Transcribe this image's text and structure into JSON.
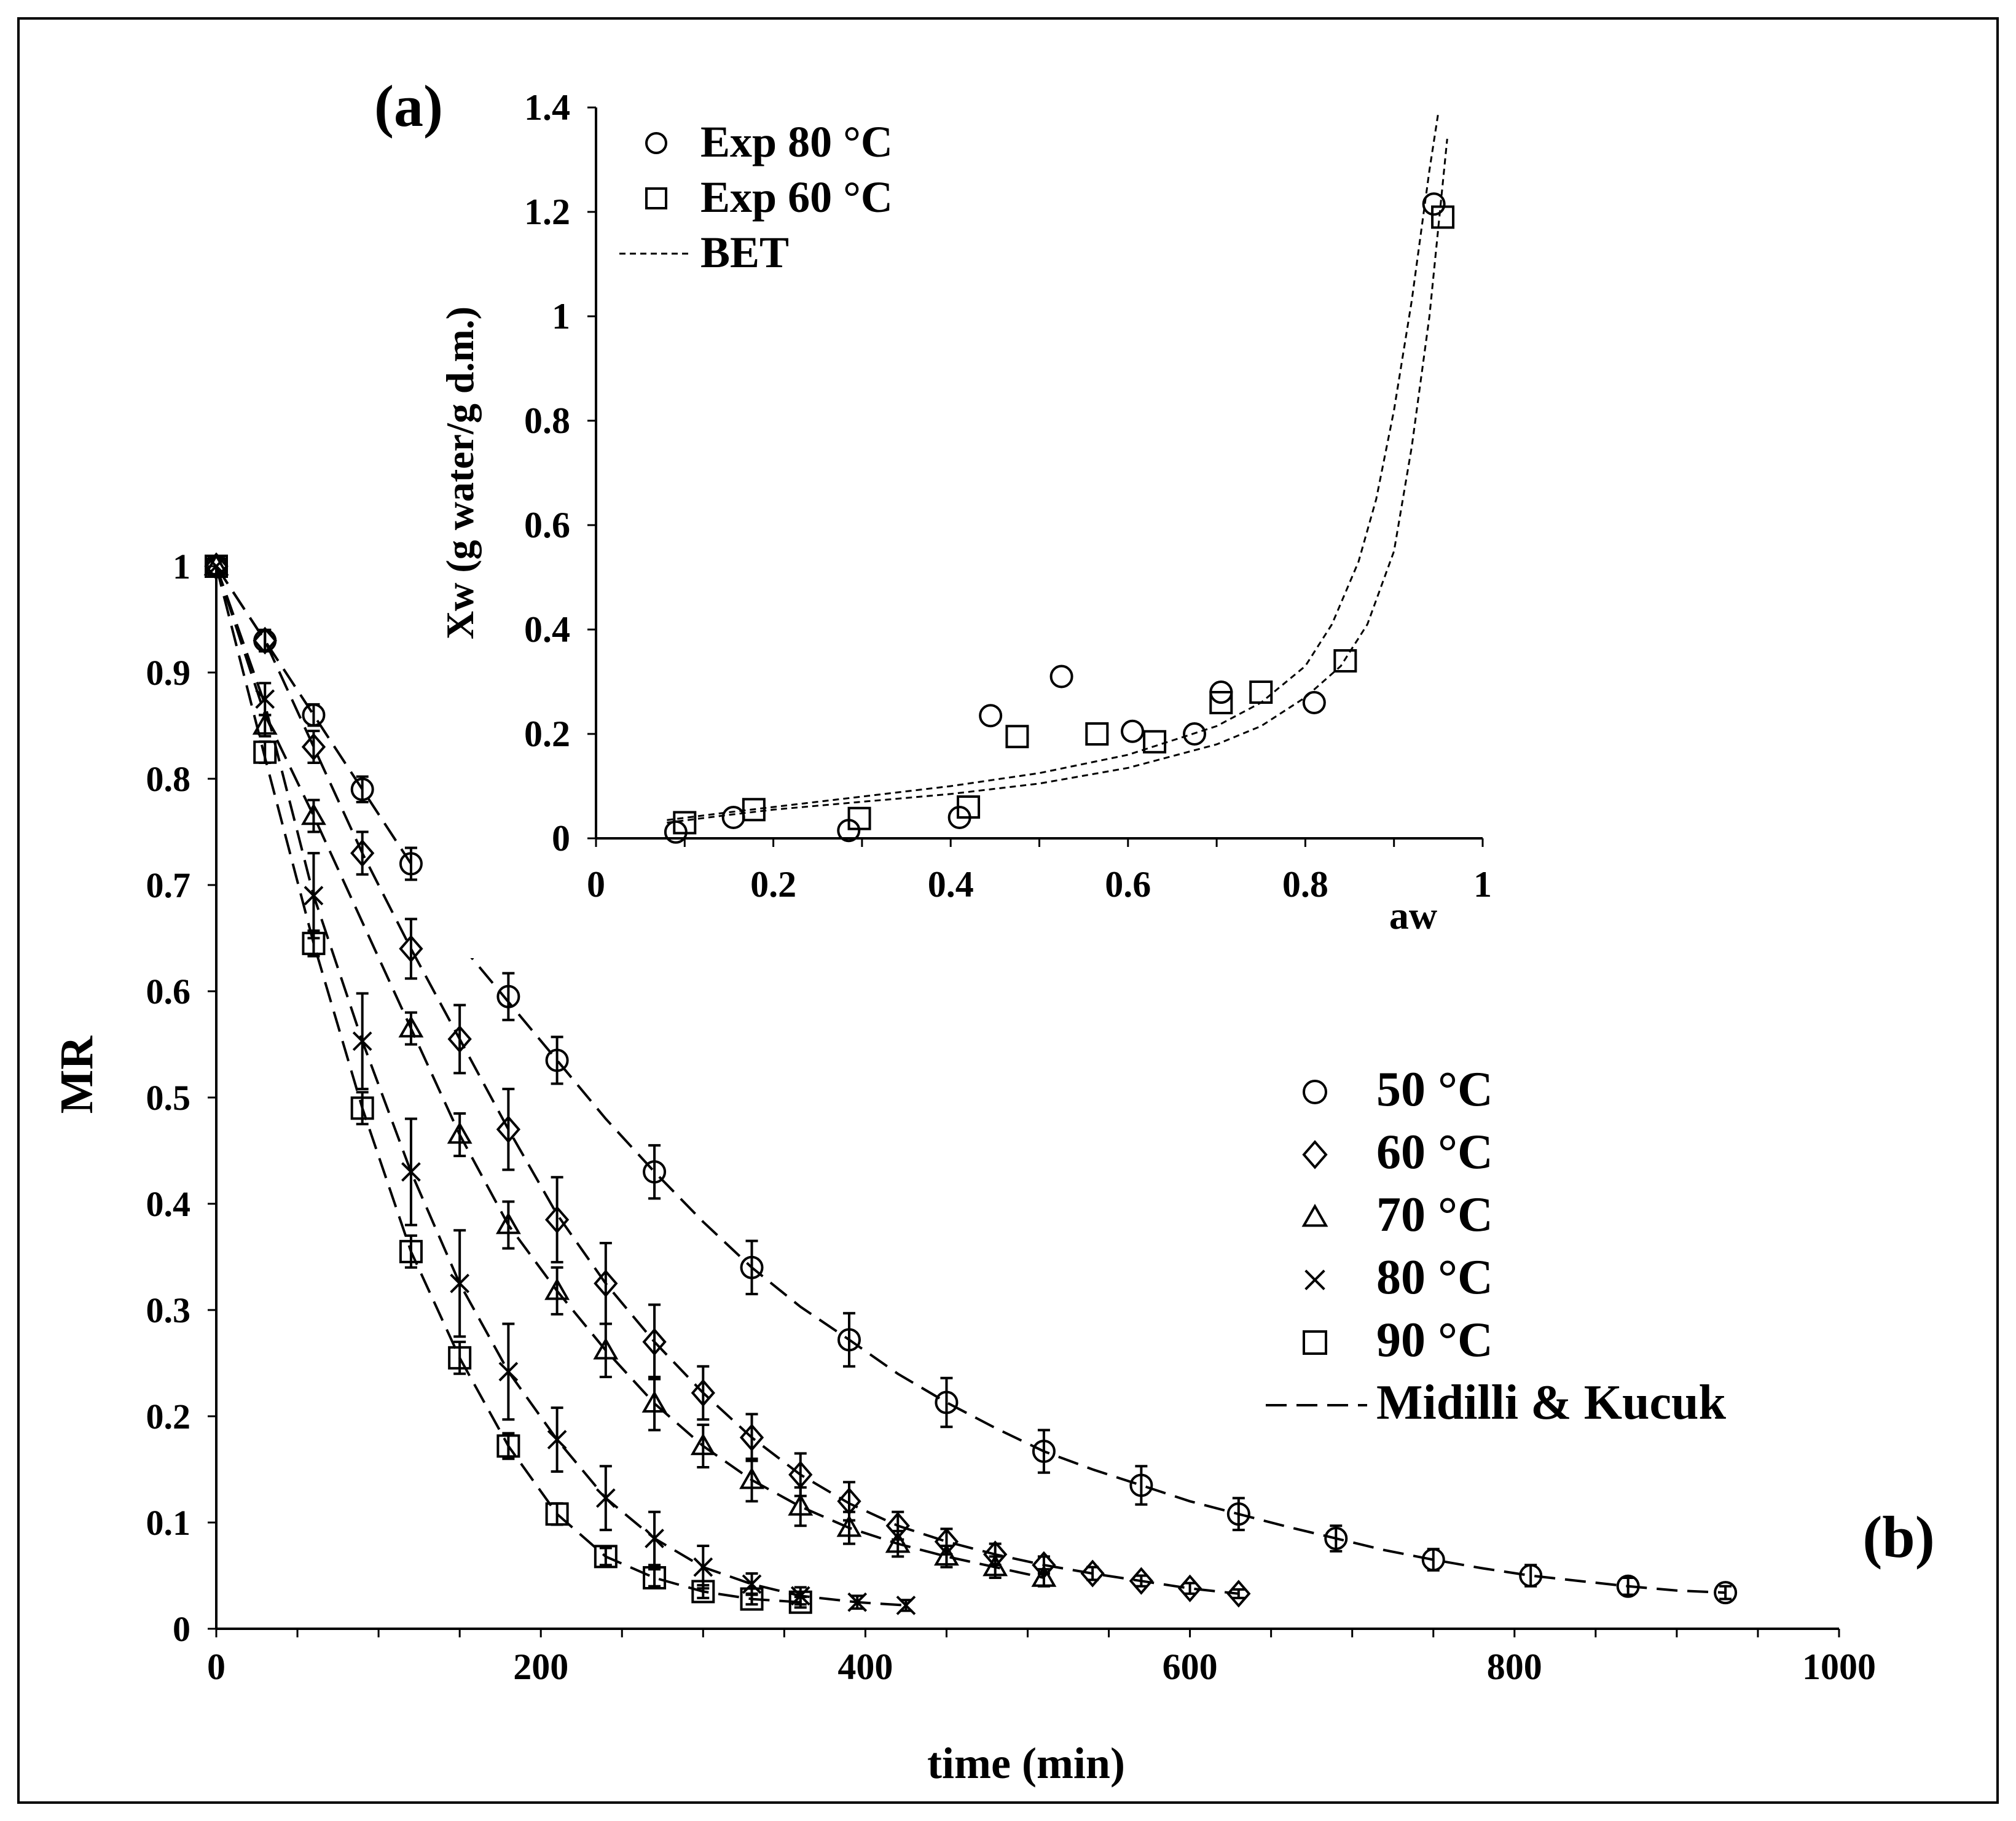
{
  "chart_data": [
    {
      "id": "b",
      "panel_label": "(b)",
      "type": "scatter",
      "xlabel": "time (min)",
      "ylabel": "MR",
      "xlim": [
        0,
        1000
      ],
      "ylim": [
        0,
        1
      ],
      "x_ticks": [
        0,
        200,
        400,
        600,
        800,
        1000
      ],
      "y_ticks": [
        0,
        0.1,
        0.2,
        0.3,
        0.4,
        0.5,
        0.6,
        0.7,
        0.8,
        0.9,
        1
      ],
      "x_tick_labels": [
        "0",
        "200",
        "400",
        "600",
        "800",
        "1000"
      ],
      "y_tick_labels": [
        "0",
        "0.1",
        "0.2",
        "0.3",
        "0.4",
        "0.5",
        "0.6",
        "0.7",
        "0.8",
        "0.9",
        "1"
      ],
      "legend": {
        "position": "right",
        "entries": [
          "50 °C",
          "60 °C",
          "70 °C",
          "80 °C",
          "90 °C",
          "Midilli & Kucuk"
        ]
      },
      "series": [
        {
          "name": "50 °C",
          "marker": "circle",
          "x": [
            0,
            30,
            60,
            90,
            120,
            180,
            210,
            270,
            330,
            390,
            450,
            510,
            570,
            630,
            690,
            750,
            810,
            870,
            930
          ],
          "y": [
            1,
            0.93,
            0.86,
            0.79,
            0.72,
            0.595,
            0.535,
            0.43,
            0.34,
            0.272,
            0.213,
            0.167,
            0.135,
            0.108,
            0.085,
            0.065,
            0.05,
            0.04,
            0.034
          ],
          "err": [
            0,
            0.01,
            0.01,
            0.012,
            0.015,
            0.022,
            0.022,
            0.025,
            0.025,
            0.025,
            0.023,
            0.02,
            0.018,
            0.015,
            0.012,
            0.01,
            0.01,
            0.008,
            0.006
          ]
        },
        {
          "name": "60 °C",
          "marker": "diamond",
          "x": [
            0,
            30,
            60,
            90,
            120,
            150,
            180,
            210,
            240,
            270,
            300,
            330,
            360,
            390,
            420,
            450,
            480,
            510,
            540,
            570,
            600,
            630
          ],
          "y": [
            1,
            0.93,
            0.83,
            0.73,
            0.64,
            0.555,
            0.47,
            0.385,
            0.325,
            0.27,
            0.222,
            0.18,
            0.145,
            0.12,
            0.097,
            0.082,
            0.07,
            0.06,
            0.052,
            0.045,
            0.038,
            0.033
          ],
          "err": [
            0,
            0.01,
            0.015,
            0.02,
            0.028,
            0.032,
            0.038,
            0.04,
            0.038,
            0.035,
            0.025,
            0.022,
            0.02,
            0.018,
            0.013,
            0.012,
            0.01,
            0.008,
            0.006,
            0.005,
            0.005,
            0.004
          ]
        },
        {
          "name": "70 °C",
          "marker": "triangle",
          "x": [
            0,
            30,
            60,
            120,
            150,
            180,
            210,
            240,
            270,
            300,
            330,
            360,
            390,
            420,
            450,
            480,
            510
          ],
          "y": [
            1,
            0.85,
            0.765,
            0.565,
            0.465,
            0.38,
            0.318,
            0.262,
            0.212,
            0.172,
            0.14,
            0.115,
            0.095,
            0.08,
            0.068,
            0.058,
            0.048
          ],
          "err": [
            0,
            0.01,
            0.015,
            0.015,
            0.02,
            0.022,
            0.022,
            0.025,
            0.025,
            0.02,
            0.02,
            0.018,
            0.015,
            0.012,
            0.01,
            0.01,
            0.008
          ]
        },
        {
          "name": "80 °C",
          "marker": "cross",
          "x": [
            0,
            30,
            60,
            90,
            120,
            150,
            180,
            210,
            240,
            270,
            300,
            330,
            360,
            395,
            425
          ],
          "y": [
            1,
            0.875,
            0.69,
            0.553,
            0.43,
            0.325,
            0.242,
            0.178,
            0.123,
            0.085,
            0.058,
            0.042,
            0.031,
            0.025,
            0.022
          ],
          "err": [
            0,
            0.015,
            0.04,
            0.045,
            0.05,
            0.05,
            0.045,
            0.03,
            0.03,
            0.025,
            0.02,
            0.01,
            0.008,
            0.006,
            0.005
          ]
        },
        {
          "name": "90 °C",
          "marker": "square",
          "x": [
            0,
            30,
            60,
            90,
            120,
            150,
            180,
            210,
            240,
            270,
            300,
            330,
            360
          ],
          "y": [
            1,
            0.825,
            0.645,
            0.49,
            0.355,
            0.255,
            0.172,
            0.108,
            0.068,
            0.048,
            0.035,
            0.028,
            0.025
          ],
          "err": [
            0,
            0.01,
            0.012,
            0.015,
            0.015,
            0.015,
            0.012,
            0.01,
            0.008,
            0.008,
            0.006,
            0.005,
            0.005
          ]
        }
      ],
      "fit_name": "Midilli & Kucuk",
      "fits": [
        {
          "for": "50 °C",
          "x_start": 150,
          "x": [
            150,
            180,
            210,
            240,
            270,
            300,
            330,
            360,
            390,
            420,
            450,
            480,
            510,
            540,
            570,
            600,
            630,
            660,
            690,
            720,
            750,
            780,
            810,
            840,
            870,
            900,
            930
          ],
          "y": [
            0.645,
            0.59,
            0.535,
            0.48,
            0.43,
            0.383,
            0.34,
            0.303,
            0.272,
            0.24,
            0.213,
            0.189,
            0.167,
            0.15,
            0.135,
            0.12,
            0.108,
            0.096,
            0.085,
            0.074,
            0.065,
            0.057,
            0.05,
            0.045,
            0.04,
            0.036,
            0.034
          ]
        },
        {
          "for": "50 °C (early)",
          "x": [
            0,
            30,
            60,
            90,
            120
          ],
          "y": [
            1,
            0.93,
            0.86,
            0.79,
            0.72
          ]
        },
        {
          "for": "60 °C",
          "x": [
            0,
            30,
            60,
            90,
            120,
            150,
            180,
            210,
            240,
            270,
            300,
            330,
            360,
            390,
            420,
            450,
            480,
            510,
            540,
            570,
            600,
            630
          ],
          "y": [
            1,
            0.93,
            0.83,
            0.73,
            0.64,
            0.555,
            0.47,
            0.39,
            0.325,
            0.27,
            0.222,
            0.18,
            0.145,
            0.118,
            0.097,
            0.082,
            0.07,
            0.06,
            0.052,
            0.045,
            0.038,
            0.033
          ]
        },
        {
          "for": "70 °C",
          "x": [
            0,
            30,
            60,
            90,
            120,
            150,
            180,
            210,
            240,
            270,
            300,
            330,
            360,
            390,
            420,
            450,
            480,
            510
          ],
          "y": [
            1,
            0.86,
            0.765,
            0.665,
            0.565,
            0.465,
            0.38,
            0.318,
            0.262,
            0.212,
            0.172,
            0.14,
            0.115,
            0.095,
            0.08,
            0.068,
            0.058,
            0.048
          ]
        },
        {
          "for": "80 °C",
          "x": [
            0,
            30,
            60,
            90,
            120,
            150,
            180,
            210,
            240,
            270,
            300,
            330,
            360,
            395,
            425
          ],
          "y": [
            1,
            0.87,
            0.69,
            0.553,
            0.43,
            0.325,
            0.242,
            0.178,
            0.123,
            0.085,
            0.058,
            0.042,
            0.031,
            0.025,
            0.022
          ]
        },
        {
          "for": "90 °C",
          "x": [
            0,
            30,
            60,
            90,
            120,
            150,
            180,
            210,
            240,
            270,
            300,
            330,
            360
          ],
          "y": [
            1,
            0.82,
            0.645,
            0.49,
            0.355,
            0.255,
            0.172,
            0.108,
            0.068,
            0.048,
            0.035,
            0.028,
            0.025
          ]
        }
      ]
    },
    {
      "id": "a",
      "panel_label": "(a)",
      "type": "scatter",
      "xlabel": "aw",
      "ylabel": "Xw (g water/g d.m.)",
      "xlim": [
        0,
        1
      ],
      "ylim": [
        0,
        1.4
      ],
      "x_ticks": [
        0,
        0.2,
        0.4,
        0.6,
        0.8,
        1
      ],
      "y_ticks": [
        0,
        0.2,
        0.4,
        0.6,
        0.8,
        1,
        1.2,
        1.4
      ],
      "x_tick_labels": [
        "0",
        "0.2",
        "0.4",
        "0.6",
        "0.8",
        "1"
      ],
      "y_tick_labels": [
        "0",
        "0.2",
        "0.4",
        "0.6",
        "0.8",
        "1",
        "1.2",
        "1.4"
      ],
      "legend": {
        "position": "top-left",
        "entries": [
          "Exp 80 °C",
          "Exp 60 °C",
          "BET"
        ]
      },
      "series": [
        {
          "name": "Exp 80 °C",
          "marker": "circle",
          "x": [
            0.09,
            0.155,
            0.285,
            0.41,
            0.445,
            0.525,
            0.605,
            0.675,
            0.705,
            0.81,
            0.945
          ],
          "y": [
            0.012,
            0.04,
            0.015,
            0.04,
            0.235,
            0.31,
            0.205,
            0.2,
            0.28,
            0.26,
            1.215
          ]
        },
        {
          "name": "Exp 60 °C",
          "marker": "square",
          "x": [
            0.1,
            0.178,
            0.297,
            0.42,
            0.475,
            0.565,
            0.63,
            0.705,
            0.75,
            0.845,
            0.955
          ],
          "y": [
            0.03,
            0.055,
            0.038,
            0.06,
            0.195,
            0.2,
            0.185,
            0.26,
            0.28,
            0.34,
            1.19
          ]
        }
      ],
      "fits": [
        {
          "name": "BET (80 °C)",
          "x": [
            0.08,
            0.15,
            0.2,
            0.3,
            0.4,
            0.5,
            0.6,
            0.7,
            0.75,
            0.8,
            0.83,
            0.86,
            0.88,
            0.9,
            0.92,
            0.94,
            0.95
          ],
          "y": [
            0.035,
            0.05,
            0.06,
            0.08,
            0.1,
            0.125,
            0.16,
            0.215,
            0.26,
            0.33,
            0.41,
            0.53,
            0.65,
            0.82,
            1.03,
            1.28,
            1.39
          ]
        },
        {
          "name": "BET (60 °C)",
          "x": [
            0.08,
            0.15,
            0.2,
            0.3,
            0.4,
            0.5,
            0.6,
            0.7,
            0.75,
            0.8,
            0.84,
            0.87,
            0.9,
            0.92,
            0.94,
            0.96
          ],
          "y": [
            0.03,
            0.045,
            0.055,
            0.07,
            0.085,
            0.105,
            0.135,
            0.18,
            0.215,
            0.27,
            0.33,
            0.41,
            0.55,
            0.75,
            1.0,
            1.34
          ]
        }
      ]
    }
  ]
}
